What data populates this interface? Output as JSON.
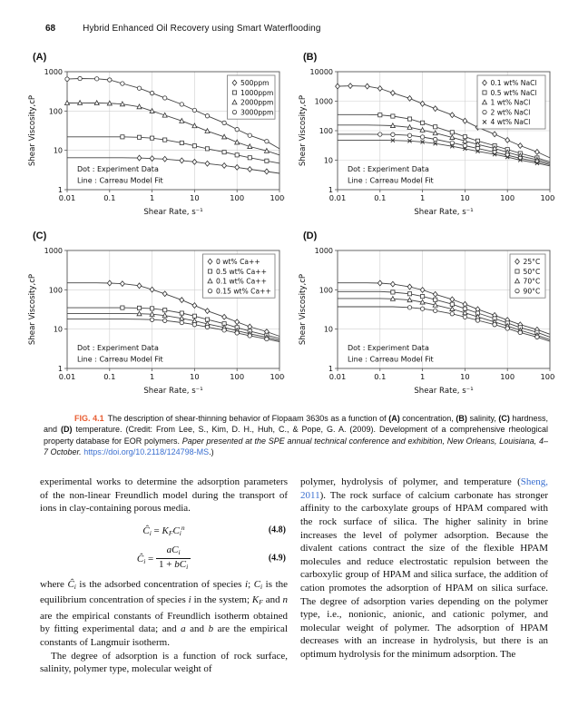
{
  "colors": {
    "fig_label_accent": "#e85c31",
    "link_blue": "#3a6fd0",
    "grid": "#cfcfcf",
    "curve": "#444444",
    "marker": "#333333"
  },
  "page": {
    "number": "68",
    "running_title": "Hybrid Enhanced Oil Recovery using Smart Waterflooding"
  },
  "chart_data": [
    {
      "id": "A",
      "panel_label": "(A)",
      "type": "line",
      "xlabel": "Shear Rate, s⁻¹",
      "ylabel": "Shear Viscosity,cP",
      "xscale": "log",
      "yscale": "log",
      "xlim": [
        0.01,
        1000
      ],
      "ylim": [
        1,
        1000
      ],
      "grid": true,
      "legend_position": "top-right",
      "note_dot": "Dot : Experiment Data",
      "note_line": "Line : Carreau Model Fit",
      "x": [
        0.01,
        0.02,
        0.05,
        0.1,
        0.2,
        0.5,
        1,
        2,
        5,
        10,
        20,
        50,
        100,
        200,
        500,
        1000
      ],
      "series": [
        {
          "name": "500ppm",
          "marker": "diamond",
          "marker_from": 5,
          "values": [
            6.5,
            6.5,
            6.5,
            6.5,
            6.5,
            6.4,
            6.2,
            6.0,
            5.5,
            5.1,
            4.6,
            4.1,
            3.7,
            3.3,
            2.9,
            2.6
          ]
        },
        {
          "name": "1000ppm",
          "marker": "square",
          "marker_from": 4,
          "values": [
            22,
            22,
            22,
            22,
            22,
            21.5,
            20.5,
            18.5,
            15.5,
            13,
            11,
            9,
            7.6,
            6.5,
            5.4,
            4.7
          ]
        },
        {
          "name": "2000ppm",
          "marker": "triangle",
          "marker_from": 0,
          "values": [
            160,
            161,
            160,
            157,
            150,
            128,
            100,
            78,
            56,
            42,
            31,
            22,
            16,
            12.5,
            9.7,
            7.6
          ]
        },
        {
          "name": "3000ppm",
          "marker": "circle",
          "marker_from": 0,
          "values": [
            650,
            670,
            660,
            620,
            500,
            380,
            285,
            215,
            148,
            105,
            75,
            50,
            34,
            24,
            17,
            11
          ]
        }
      ]
    },
    {
      "id": "B",
      "panel_label": "(B)",
      "type": "line",
      "xlabel": "Shear Rate, s⁻¹",
      "ylabel": "Shear Viscosity,cP",
      "xscale": "log",
      "yscale": "log",
      "xlim": [
        0.01,
        1000
      ],
      "ylim": [
        1,
        10000
      ],
      "grid": true,
      "legend_position": "top-right",
      "note_dot": "Dot : Experiment Data",
      "note_line": "Line : Carreau Model Fit",
      "x": [
        0.01,
        0.02,
        0.05,
        0.1,
        0.2,
        0.5,
        1,
        2,
        5,
        10,
        20,
        50,
        100,
        200,
        500,
        1000
      ],
      "series": [
        {
          "name": "0.1 wt% NaCl",
          "marker": "diamond",
          "marker_from": 0,
          "values": [
            3200,
            3300,
            3200,
            2700,
            1900,
            1250,
            820,
            560,
            340,
            215,
            130,
            76,
            48,
            31,
            19,
            12
          ]
        },
        {
          "name": "0.5 wt% NaCl",
          "marker": "square",
          "marker_from": 3,
          "values": [
            350,
            350,
            350,
            340,
            310,
            250,
            185,
            135,
            88,
            62,
            45,
            31,
            23,
            17,
            12,
            8.6
          ]
        },
        {
          "name": "1 wt% NaCl",
          "marker": "triangle",
          "marker_from": 4,
          "values": [
            155,
            155,
            155,
            152,
            148,
            130,
            105,
            83,
            59,
            45,
            34,
            25,
            18.5,
            14,
            10.3,
            7.7
          ]
        },
        {
          "name": "2 wt% NaCl",
          "marker": "circle",
          "marker_from": 3,
          "values": [
            76,
            76,
            76,
            75,
            74,
            69,
            61,
            51,
            39,
            31,
            25,
            18.6,
            14.8,
            11.6,
            8.9,
            7
          ]
        },
        {
          "name": "4 wt% NaCl",
          "marker": "x",
          "marker_from": 4,
          "values": [
            48,
            48,
            48,
            48,
            47,
            45,
            41.5,
            36.5,
            29.5,
            24.5,
            20,
            15.7,
            12.7,
            10.1,
            7.9,
            6.4
          ]
        }
      ]
    },
    {
      "id": "C",
      "panel_label": "(C)",
      "type": "line",
      "xlabel": "Shear Rate, s⁻¹",
      "ylabel": "Shear Viscosity,cP",
      "xscale": "log",
      "yscale": "log",
      "xlim": [
        0.01,
        1000
      ],
      "ylim": [
        1,
        1000
      ],
      "grid": true,
      "legend_position": "top-right",
      "note_dot": "Dot : Experiment Data",
      "note_line": "Line : Carreau Model Fit",
      "x": [
        0.01,
        0.02,
        0.05,
        0.1,
        0.2,
        0.5,
        1,
        2,
        5,
        10,
        20,
        50,
        100,
        200,
        500,
        1000
      ],
      "series": [
        {
          "name": "0 wt% Ca++",
          "marker": "diamond",
          "marker_from": 3,
          "values": [
            150,
            150,
            150,
            148,
            143,
            127,
            101,
            79,
            55,
            40,
            29,
            20.4,
            15.2,
            11.5,
            8.6,
            6.6
          ]
        },
        {
          "name": "0.5 wt% Ca++",
          "marker": "square",
          "marker_from": 4,
          "values": [
            35,
            35,
            35,
            35,
            35,
            34.5,
            33.5,
            30.5,
            25.5,
            21.5,
            17.5,
            13.7,
            11,
            8.9,
            7,
            5.8
          ]
        },
        {
          "name": "0.1 wt% Ca++",
          "marker": "triangle",
          "marker_from": 5,
          "values": [
            25,
            25,
            25,
            25,
            25,
            24.6,
            24,
            22.2,
            18.8,
            16.2,
            13.6,
            11,
            9.1,
            7.6,
            6.2,
            5.2
          ]
        },
        {
          "name": "0.15 wt% Ca++",
          "marker": "circle",
          "marker_from": 6,
          "values": [
            18,
            18,
            18,
            18,
            18,
            17.8,
            17.4,
            16.5,
            14.6,
            13,
            11.3,
            9.4,
            8,
            6.8,
            5.6,
            4.8
          ]
        }
      ]
    },
    {
      "id": "D",
      "panel_label": "(D)",
      "type": "line",
      "xlabel": "Shear Rate, s⁻¹",
      "ylabel": "Shear Viscosity,cP",
      "xscale": "log",
      "yscale": "log",
      "xlim": [
        0.01,
        1000
      ],
      "ylim": [
        1,
        1000
      ],
      "grid": true,
      "legend_position": "top-right",
      "note_dot": "Dot : Experiment Data",
      "note_line": "Line : Carreau Model Fit",
      "x": [
        0.01,
        0.02,
        0.05,
        0.1,
        0.2,
        0.5,
        1,
        2,
        5,
        10,
        20,
        50,
        100,
        200,
        500,
        1000
      ],
      "series": [
        {
          "name": "25°C",
          "marker": "diamond",
          "marker_from": 3,
          "values": [
            150,
            150,
            150,
            148,
            139,
            119,
            99,
            77,
            57,
            43,
            32,
            22.5,
            17,
            13,
            9.7,
            7.4
          ]
        },
        {
          "name": "50°C",
          "marker": "square",
          "marker_from": 4,
          "values": [
            90,
            90,
            90,
            90,
            87,
            79,
            68,
            56,
            43,
            33,
            25.5,
            18.6,
            14.3,
            11,
            8.3,
            6.3
          ]
        },
        {
          "name": "70°C",
          "marker": "triangle",
          "marker_from": 4,
          "values": [
            60,
            60,
            60,
            60,
            59,
            55,
            48.5,
            41,
            32.5,
            26,
            20.5,
            15.2,
            12,
            9.3,
            7,
            5.4
          ]
        },
        {
          "name": "90°C",
          "marker": "circle",
          "marker_from": 5,
          "values": [
            37,
            37,
            37,
            37,
            37,
            35.5,
            33,
            29.5,
            24.5,
            20.3,
            16.7,
            13,
            10.4,
            8.2,
            6.3,
            4.9
          ]
        }
      ]
    }
  ],
  "figure_caption": {
    "segments": [
      {
        "t": "FIG. 4.1",
        "s": "figlabel"
      },
      {
        "t": "The description of shear-thinning behavior of Flopaam 3630s as a function of "
      },
      {
        "t": "(A)",
        "s": "b"
      },
      {
        "t": " concentration, "
      },
      {
        "t": "(B)",
        "s": "b"
      },
      {
        "t": " salinity, "
      },
      {
        "t": "(C)",
        "s": "b"
      },
      {
        "t": " hardness, and "
      },
      {
        "t": "(D)",
        "s": "b"
      },
      {
        "t": " temperature. (Credit: From Lee, S., Kim, D. H., Huh, C., & Pope, G. A. (2009). Development of a comprehensive rheological property database for EOR polymers. "
      },
      {
        "t": "Paper presented at the SPE annual technical conference and exhibition, New Orleans, Louisiana, 4–7 October.",
        "s": "i"
      },
      {
        "t": " "
      },
      {
        "t": "https://doi.org/10.2118/124798-MS",
        "s": "link"
      },
      {
        "t": ".)"
      }
    ]
  },
  "body": {
    "left": {
      "para1_segments": [
        {
          "t": "experimental works to determine the adsorption parameters of the non-linear Freundlich model during the transport of ions in clay-containing porous media."
        }
      ],
      "equations": [
        {
          "number": "(4.8)",
          "segments": [
            {
              "t": "Ĉ",
              "s": "i"
            },
            {
              "t": "i",
              "s": "sub"
            },
            {
              "t": " = "
            },
            {
              "t": "K",
              "s": "i"
            },
            {
              "t": "F",
              "s": "sub"
            },
            {
              "t": "C",
              "s": "i"
            },
            {
              "t": "i",
              "s": "sub"
            },
            {
              "t": "n",
              "s": "sup"
            }
          ]
        },
        {
          "number": "(4.9)",
          "segments": [
            {
              "t": "Ĉ",
              "s": "i"
            },
            {
              "t": "i",
              "s": "sub"
            },
            {
              "t": " = "
            },
            {
              "frac": {
                "num": [
                  {
                    "t": "a",
                    "s": "i"
                  },
                  {
                    "t": "C",
                    "s": "i"
                  },
                  {
                    "t": "i",
                    "s": "sub"
                  }
                ],
                "den": [
                  {
                    "t": "1 + "
                  },
                  {
                    "t": "b",
                    "s": "i"
                  },
                  {
                    "t": "C",
                    "s": "i"
                  },
                  {
                    "t": "i",
                    "s": "sub"
                  }
                ]
              }
            }
          ]
        }
      ],
      "para2_segments": [
        {
          "t": "where "
        },
        {
          "t": "Ĉ",
          "s": "i"
        },
        {
          "t": "i",
          "s": "sub"
        },
        {
          "t": " is the adsorbed concentration of species "
        },
        {
          "t": "i",
          "s": "i"
        },
        {
          "t": "; "
        },
        {
          "t": "C",
          "s": "i"
        },
        {
          "t": "i",
          "s": "sub"
        },
        {
          "t": " is the equilibrium concentration of species "
        },
        {
          "t": "i",
          "s": "i"
        },
        {
          "t": " in the system; "
        },
        {
          "t": "K",
          "s": "i"
        },
        {
          "t": "F",
          "s": "sub"
        },
        {
          "t": " and "
        },
        {
          "t": "n",
          "s": "i"
        },
        {
          "t": " are the empirical constants of Freundlich isotherm obtained by fitting experimental data; and "
        },
        {
          "t": "a",
          "s": "i"
        },
        {
          "t": " and "
        },
        {
          "t": "b",
          "s": "i"
        },
        {
          "t": " are the empirical constants of Langmuir isotherm."
        }
      ],
      "para3_segments": [
        {
          "t": "The degree of adsorption is a function of rock surface, salinity, polymer type, molecular weight of"
        }
      ]
    },
    "right": {
      "para1_segments": [
        {
          "t": "polymer, hydrolysis of polymer, and temperature ("
        },
        {
          "t": "Sheng, 2011",
          "s": "link"
        },
        {
          "t": "). The rock surface of calcium carbonate has stronger affinity to the carboxylate groups of HPAM compared with the rock surface of silica. The higher salinity in brine increases the level of polymer adsorption. Because the divalent cations contract the size of the flexible HPAM molecules and reduce electrostatic repulsion between the carboxylic group of HPAM and silica surface, the addition of cation promotes the adsorption of HPAM on silica surface. The degree of adsorption varies depending on the polymer type, i.e., nonionic, anionic, and cationic polymer, and molecular weight of polymer. The adsorption of HPAM decreases with an increase in hydrolysis, but there is an optimum hydrolysis for the minimum adsorption. The"
        }
      ]
    }
  }
}
